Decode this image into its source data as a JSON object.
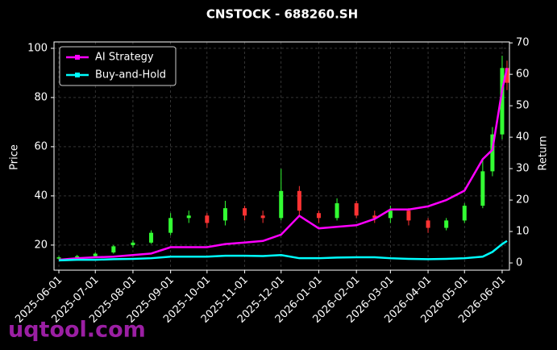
{
  "chart_data": {
    "type": "candlestick",
    "title": "CNSTOCK - 688260.SH",
    "ylabel": "Price",
    "y2label": "Return",
    "watermark": "uqtool.com",
    "x": [
      "2025-06-01",
      "2025-06-16",
      "2025-07-01",
      "2025-07-16",
      "2025-08-01",
      "2025-08-16",
      "2025-09-01",
      "2025-09-16",
      "2025-10-01",
      "2025-10-16",
      "2025-11-01",
      "2025-11-16",
      "2025-12-01",
      "2025-12-16",
      "2026-01-01",
      "2026-01-16",
      "2026-02-01",
      "2026-02-16",
      "2026-03-01",
      "2026-03-16",
      "2026-04-01",
      "2026-04-16",
      "2026-05-01",
      "2026-05-16",
      "2026-05-24",
      "2026-06-01",
      "2026-06-05"
    ],
    "open": [
      14.5,
      15,
      15.5,
      17,
      20,
      21,
      25,
      31,
      32,
      30,
      35,
      32,
      31,
      42,
      33,
      31,
      37,
      32,
      31,
      34,
      30,
      27,
      30,
      36,
      50,
      65,
      92
    ],
    "high": [
      15.5,
      16,
      17,
      20,
      22,
      26,
      33,
      34,
      33,
      38,
      36,
      34,
      51,
      44,
      34,
      39,
      38,
      34,
      36,
      35,
      31,
      31,
      37,
      55,
      68,
      97,
      95
    ],
    "low": [
      14,
      14.5,
      15,
      16.5,
      19,
      20.5,
      24,
      29,
      27,
      28,
      30,
      29,
      30,
      32,
      29,
      30,
      31,
      29,
      29,
      28,
      25,
      26,
      29,
      35,
      48,
      63,
      83
    ],
    "close": [
      15,
      15.5,
      16.5,
      19.5,
      21,
      25,
      31,
      32,
      29,
      35,
      32,
      31,
      42,
      34,
      31,
      37,
      32,
      31,
      34,
      30,
      27,
      30,
      36,
      50,
      65,
      92,
      86
    ],
    "up_color": "#33ff33",
    "down_color": "#ff3333",
    "series": [
      {
        "name": "AI Strategy",
        "color": "#ff00ff",
        "axis": "y2",
        "values": [
          1,
          1.5,
          1.8,
          2,
          2.5,
          3,
          5,
          5,
          5,
          6,
          6.5,
          7,
          9,
          15,
          11,
          11.5,
          12,
          14,
          17,
          17,
          18,
          20,
          23,
          33,
          36,
          55,
          62
        ]
      },
      {
        "name": "Buy-and-Hold",
        "color": "#00ffff",
        "axis": "y2",
        "values": [
          0.8,
          1,
          1,
          1.2,
          1.3,
          1.5,
          2,
          2,
          2,
          2.3,
          2.3,
          2.2,
          2.5,
          1.5,
          1.5,
          1.7,
          1.8,
          1.8,
          1.5,
          1.3,
          1.2,
          1.3,
          1.5,
          2,
          3.5,
          6,
          7
        ]
      }
    ],
    "xlim": [
      "2025-05-28",
      "2026-06-07"
    ],
    "xticks": [
      "2025-06-01",
      "2025-07-01",
      "2025-08-01",
      "2025-09-01",
      "2025-10-01",
      "2025-11-01",
      "2025-12-01",
      "2026-01-01",
      "2026-02-01",
      "2026-03-01",
      "2026-04-01",
      "2026-05-01",
      "2026-06-01"
    ],
    "ylim": [
      9.8,
      102.6
    ],
    "yticks": [
      20,
      40,
      60,
      80,
      100
    ],
    "y2lim": [
      -2.3,
      70.3
    ],
    "y2ticks": [
      0,
      10,
      20,
      30,
      40,
      50,
      60,
      70
    ],
    "grid": true,
    "legend": "upper left"
  }
}
